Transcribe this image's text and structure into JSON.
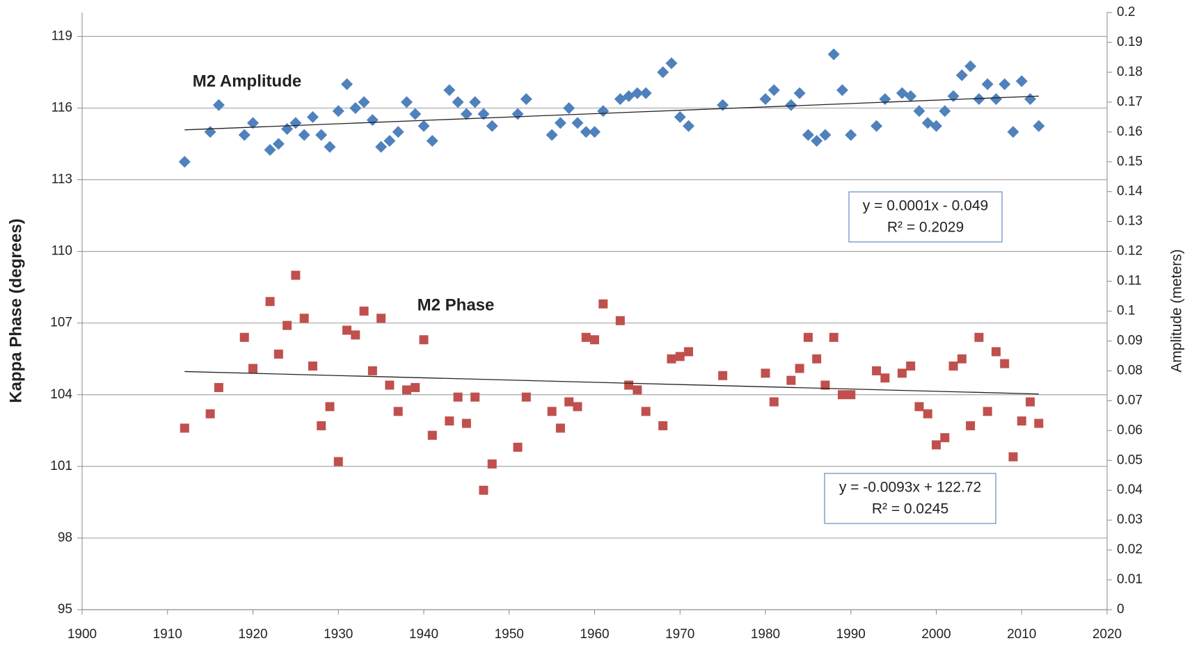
{
  "chart_data": {
    "type": "scatter",
    "y_label": "Kappa Phase (degrees)",
    "y2_label": "Amplitude (meters)",
    "xlim": [
      1900,
      2020
    ],
    "xticks": [
      1900,
      1910,
      1920,
      1930,
      1940,
      1950,
      1960,
      1970,
      1980,
      1990,
      2000,
      2010,
      2020
    ],
    "ylim": [
      95,
      120
    ],
    "yticks": [
      95,
      98,
      101,
      104,
      107,
      110,
      113,
      116,
      119
    ],
    "y2lim": [
      0,
      0.2
    ],
    "y2ticks": [
      0,
      0.01,
      0.02,
      0.03,
      0.04,
      0.05,
      0.06,
      0.07,
      0.08,
      0.09,
      0.1,
      0.11,
      0.12,
      0.13,
      0.14,
      0.15,
      0.16,
      0.17,
      0.18,
      0.19,
      0.2
    ],
    "grid": true,
    "x": [
      1912,
      1915,
      1916,
      1919,
      1920,
      1922,
      1923,
      1924,
      1925,
      1926,
      1927,
      1928,
      1929,
      1930,
      1931,
      1932,
      1933,
      1934,
      1935,
      1936,
      1937,
      1938,
      1939,
      1940,
      1941,
      1943,
      1944,
      1945,
      1946,
      1947,
      1948,
      1951,
      1952,
      1955,
      1956,
      1957,
      1958,
      1959,
      1960,
      1961,
      1963,
      1964,
      1965,
      1966,
      1968,
      1969,
      1970,
      1971,
      1975,
      1980,
      1981,
      1983,
      1984,
      1985,
      1986,
      1987,
      1988,
      1989,
      1990,
      1993,
      1994,
      1996,
      1997,
      1998,
      1999,
      2000,
      2001,
      2002,
      2003,
      2004,
      2005,
      2006,
      2007,
      2008,
      2009,
      2010,
      2011,
      2012
    ],
    "series": [
      {
        "name": "M2 Amplitude",
        "color": "#4f81bd",
        "marker": "diamond",
        "axis": "y2",
        "values": [
          0.15,
          0.16,
          0.169,
          0.159,
          0.163,
          0.154,
          0.156,
          0.161,
          0.163,
          0.159,
          0.165,
          0.159,
          0.155,
          0.167,
          0.176,
          0.168,
          0.17,
          0.164,
          0.155,
          0.157,
          0.16,
          0.17,
          0.166,
          0.162,
          0.157,
          0.174,
          0.17,
          0.166,
          0.17,
          0.166,
          0.162,
          0.166,
          0.171,
          0.159,
          0.163,
          0.168,
          0.163,
          0.16,
          0.16,
          0.167,
          0.171,
          0.172,
          0.173,
          0.173,
          0.18,
          0.183,
          0.165,
          0.162,
          0.169,
          0.171,
          0.174,
          0.169,
          0.173,
          0.159,
          0.157,
          0.159,
          0.186,
          0.174,
          0.159,
          0.162,
          0.171,
          0.173,
          0.172,
          0.167,
          0.163,
          0.162,
          0.167,
          0.172,
          0.179,
          0.182,
          0.171,
          0.176,
          0.171,
          0.176,
          0.16,
          0.177,
          0.171,
          0.162
        ]
      },
      {
        "name": "M2 Phase",
        "color": "#c0504d",
        "marker": "square",
        "values": [
          102.6,
          103.2,
          104.3,
          106.4,
          105.1,
          107.9,
          105.7,
          106.9,
          109.0,
          107.2,
          105.2,
          102.7,
          103.5,
          101.2,
          106.7,
          106.5,
          107.5,
          105.0,
          107.2,
          104.4,
          103.3,
          104.2,
          104.3,
          106.3,
          102.3,
          102.9,
          103.9,
          102.8,
          103.9,
          100.0,
          101.1,
          101.8,
          103.9,
          103.3,
          102.6,
          103.7,
          103.5,
          106.4,
          106.3,
          107.8,
          107.1,
          104.4,
          104.2,
          103.3,
          102.7,
          105.5,
          105.6,
          105.8,
          104.8,
          104.9,
          103.7,
          104.6,
          105.1,
          106.4,
          105.5,
          104.4,
          106.4,
          104.0,
          104.0,
          105.0,
          104.7,
          104.9,
          105.2,
          103.5,
          103.2,
          101.9,
          102.2,
          105.2,
          105.5,
          102.7,
          106.4,
          103.3,
          105.8,
          105.3,
          101.4,
          102.9,
          103.7,
          102.8
        ]
      }
    ],
    "trendlines": [
      {
        "axis": "y2",
        "x": [
          1912,
          2012
        ],
        "values": [
          0.1607,
          0.172
        ],
        "equation": "y = 0.0001x - 0.049",
        "r2": "R² = 0.2029"
      },
      {
        "x": [
          1912,
          2012
        ],
        "values": [
          104.97,
          104.03
        ],
        "equation": "y = -0.0093x + 122.72",
        "r2": "R² = 0.0245"
      }
    ]
  }
}
